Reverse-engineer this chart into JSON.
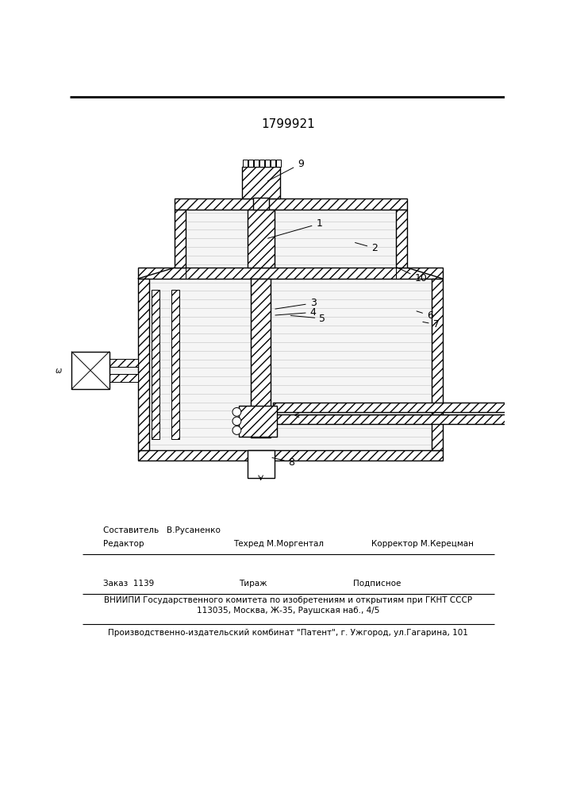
{
  "title_number": "1799921",
  "bg_color": "#ffffff",
  "line_color": "#000000",
  "footer": {
    "line1_left": "Редактор",
    "line1_center_top": "Составитель   В.Русаненко",
    "line1_center_bot": "Техред М.Моргентал",
    "line1_right": "Корректор М.Керецман",
    "line2_left": "Заказ  1139",
    "line2_center": "Тираж",
    "line2_right": "Подписное",
    "line3": "ВНИИПИ Государственного комитета по изобретениям и открытиям при ГКНТ СССР",
    "line4": "113035, Москва, Ж-35, Раушская наб., 4/5",
    "line5": "Производственно-издательский комбинат \"Патент\", г. Ужгород, ул.Гагарина, 101"
  }
}
